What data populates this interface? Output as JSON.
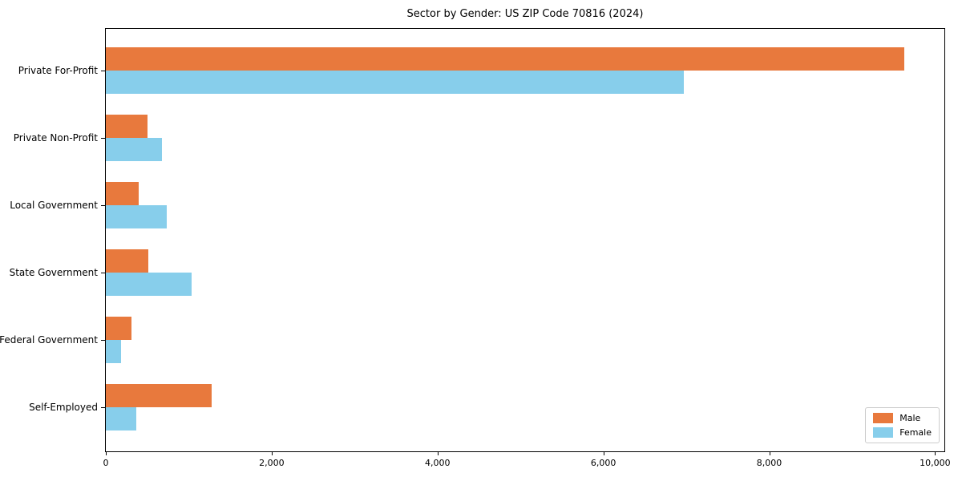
{
  "title": "Sector by Gender: US ZIP Code 70816 (2024)",
  "colors": {
    "male": "#e8793d",
    "female": "#87ceeb",
    "axis": "#000000",
    "legend_border": "#cccccc",
    "background": "#ffffff"
  },
  "legend": {
    "position": "lower right",
    "items": [
      {
        "label": "Male",
        "color": "#e8793d"
      },
      {
        "label": "Female",
        "color": "#87ceeb"
      }
    ]
  },
  "chart_data": {
    "type": "bar",
    "orientation": "horizontal",
    "title": "Sector by Gender: US ZIP Code 70816 (2024)",
    "categories": [
      "Private For-Profit",
      "Private Non-Profit",
      "Local Government",
      "State Government",
      "Federal Government",
      "Self-Employed"
    ],
    "series": [
      {
        "name": "Male",
        "color": "#e8793d",
        "values": [
          9630,
          500,
          400,
          510,
          310,
          1280
        ]
      },
      {
        "name": "Female",
        "color": "#87ceeb",
        "values": [
          6970,
          680,
          730,
          1030,
          180,
          370
        ]
      }
    ],
    "xlabel": "",
    "ylabel": "",
    "xlim": [
      0,
      10112
    ],
    "xticks": [
      0,
      2000,
      4000,
      6000,
      8000,
      10000
    ],
    "xtick_labels": [
      "0",
      "2,000",
      "4,000",
      "6,000",
      "8,000",
      "10,000"
    ],
    "grid": false,
    "legend_position": "lower right"
  }
}
